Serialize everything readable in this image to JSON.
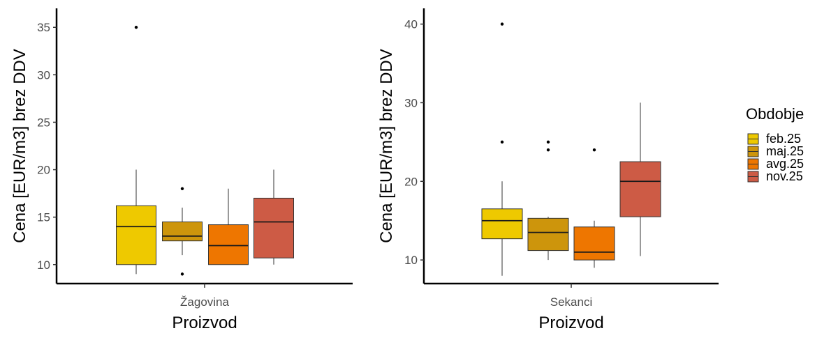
{
  "chart_data": [
    {
      "type": "boxplot",
      "category": "Žagovina",
      "xlabel": "Proizvod",
      "ylabel": "Cena [EUR/m3] brez DDV",
      "ylim": [
        8,
        37
      ],
      "yticks": [
        10,
        15,
        20,
        25,
        30,
        35
      ],
      "series": [
        {
          "name": "feb.25",
          "q1": 10,
          "median": 14,
          "q3": 16.2,
          "whisker_low": 9,
          "whisker_high": 20,
          "outliers": [
            35
          ]
        },
        {
          "name": "maj.25",
          "q1": 12.5,
          "median": 13,
          "q3": 14.5,
          "whisker_low": 11,
          "whisker_high": 16,
          "outliers": [
            18,
            9
          ]
        },
        {
          "name": "avg.25",
          "q1": 10,
          "median": 12,
          "q3": 14.2,
          "whisker_low": 10,
          "whisker_high": 18,
          "outliers": []
        },
        {
          "name": "nov.25",
          "q1": 10.7,
          "median": 14.5,
          "q3": 17,
          "whisker_low": 10,
          "whisker_high": 20,
          "outliers": []
        }
      ]
    },
    {
      "type": "boxplot",
      "category": "Sekanci",
      "xlabel": "Proizvod",
      "ylabel": "Cena [EUR/m3] brez DDV",
      "ylim": [
        7,
        42
      ],
      "yticks": [
        10,
        20,
        30,
        40
      ],
      "series": [
        {
          "name": "feb.25",
          "q1": 12.7,
          "median": 15,
          "q3": 16.5,
          "whisker_low": 8,
          "whisker_high": 20,
          "outliers": [
            40,
            25
          ]
        },
        {
          "name": "maj.25",
          "q1": 11.2,
          "median": 13.5,
          "q3": 15.3,
          "whisker_low": 10,
          "whisker_high": 15.5,
          "outliers": [
            25,
            24
          ]
        },
        {
          "name": "avg.25",
          "q1": 10,
          "median": 11,
          "q3": 14.2,
          "whisker_low": 9,
          "whisker_high": 15,
          "outliers": [
            24
          ]
        },
        {
          "name": "nov.25",
          "q1": 15.5,
          "median": 20,
          "q3": 22.5,
          "whisker_low": 10.5,
          "whisker_high": 30,
          "outliers": []
        }
      ]
    }
  ],
  "legend": {
    "title": "Obdobje",
    "items": [
      {
        "label": "feb.25",
        "color": "#EEC900"
      },
      {
        "label": "maj.25",
        "color": "#CD950C"
      },
      {
        "label": "avg.25",
        "color": "#EE7600"
      },
      {
        "label": "nov.25",
        "color": "#CD5B45"
      }
    ]
  }
}
